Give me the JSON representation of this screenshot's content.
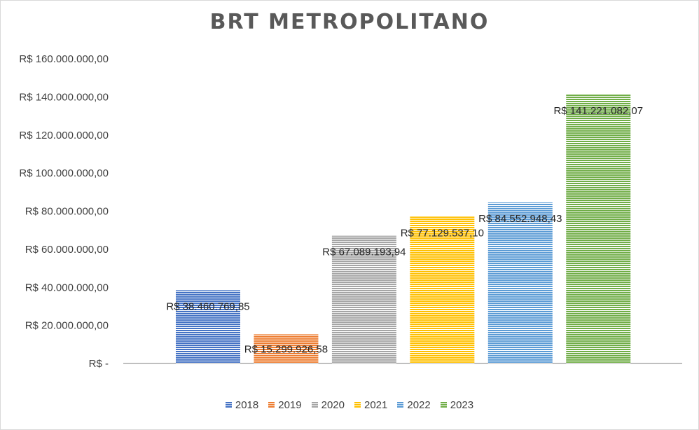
{
  "chart_data": {
    "type": "bar",
    "title": "BRT METROPOLITANO",
    "categories": [
      "2018",
      "2019",
      "2020",
      "2021",
      "2022",
      "2023"
    ],
    "values": [
      38460769.85,
      15299926.58,
      67089193.94,
      77129537.1,
      84552948.43,
      141221082.07
    ],
    "data_labels": [
      "R$ 38.460.769,85",
      "R$ 15.299.926,58",
      "R$ 67.089.193,94",
      "R$ 77.129.537,10",
      "R$ 84.552.948,43",
      "R$ 141.221.082,07"
    ],
    "colors": [
      "#4472c4",
      "#ed7d31",
      "#a5a5a5",
      "#ffc000",
      "#5b9bd5",
      "#70ad47"
    ],
    "ylim": [
      0,
      160000000
    ],
    "yticks": [
      0,
      20000000,
      40000000,
      60000000,
      80000000,
      100000000,
      120000000,
      140000000,
      160000000
    ],
    "ytick_labels": [
      "R$ -",
      "R$ 20.000.000,00",
      "R$ 40.000.000,00",
      "R$ 60.000.000,00",
      "R$ 80.000.000,00",
      "R$ 100.000.000,00",
      "R$ 120.000.000,00",
      "R$ 140.000.000,00",
      "R$ 160.000.000,00"
    ],
    "xlabel": "",
    "ylabel": "",
    "grid": false,
    "legend_position": "bottom"
  }
}
